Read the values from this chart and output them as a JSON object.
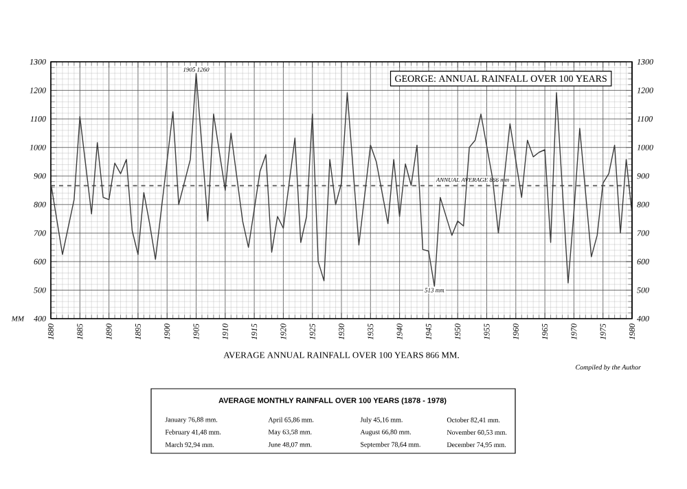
{
  "chart_data": {
    "type": "line",
    "title": "GEORGE: ANNUAL RAINFALL OVER 100 YEARS",
    "xlabel": "AVERAGE ANNUAL RAINFALL OVER 100 YEARS 866 MM.",
    "ylabel": "MM",
    "x": [
      1880,
      1882,
      1884,
      1885,
      1887,
      1888,
      1889,
      1890,
      1891,
      1892,
      1893,
      1894,
      1895,
      1896,
      1897,
      1898,
      1901,
      1902,
      1904,
      1905,
      1907,
      1908,
      1910,
      1911,
      1913,
      1914,
      1916,
      1917,
      1918,
      1919,
      1920,
      1922,
      1923,
      1924,
      1925,
      1926,
      1927,
      1928,
      1929,
      1930,
      1931,
      1933,
      1935,
      1936,
      1938,
      1939,
      1940,
      1941,
      1942,
      1943,
      1944,
      1945,
      1946,
      1947,
      1949,
      1950,
      1951,
      1952,
      1953,
      1954,
      1956,
      1957,
      1959,
      1961,
      1962,
      1963,
      1964,
      1965,
      1966,
      1967,
      1969,
      1970,
      1971,
      1973,
      1974,
      1975,
      1976,
      1977,
      1978,
      1979,
      1980
    ],
    "series": [
      {
        "color": "#3a3a3a",
        "values": [
          875,
          625,
          817,
          1108,
          767,
          1017,
          825,
          817,
          945,
          908,
          958,
          708,
          625,
          842,
          733,
          608,
          1125,
          800,
          958,
          1260,
          742,
          1117,
          850,
          1050,
          742,
          650,
          917,
          975,
          633,
          758,
          717,
          1033,
          667,
          758,
          1117,
          600,
          533,
          958,
          800,
          875,
          1192,
          658,
          1008,
          950,
          733,
          958,
          758,
          942,
          867,
          1008,
          642,
          637,
          513,
          825,
          692,
          742,
          725,
          1000,
          1025,
          1117,
          892,
          700,
          1083,
          825,
          1025,
          967,
          983,
          992,
          667,
          1192,
          525,
          775,
          1067,
          617,
          692,
          875,
          908,
          1008,
          700,
          958,
          767
        ]
      }
    ],
    "xlim": [
      1880,
      1980
    ],
    "xticks": [
      1880,
      1885,
      1890,
      1895,
      1900,
      1905,
      1910,
      1915,
      1920,
      1925,
      1930,
      1935,
      1940,
      1945,
      1950,
      1955,
      1960,
      1965,
      1970,
      1975,
      1980
    ],
    "ylim": [
      400,
      1300
    ],
    "yticks": [
      400,
      500,
      600,
      700,
      800,
      900,
      1000,
      1100,
      1200,
      1300
    ],
    "y2lim": [
      400,
      1300
    ],
    "y2ticks": [
      400,
      500,
      600,
      700,
      800,
      900,
      1000,
      1100,
      1200,
      1300
    ],
    "grid": true,
    "marker": "none",
    "line_style": "solid",
    "ref_lines": [
      {
        "axis": "y",
        "value": 866,
        "label": "ANNUAL AVERAGE 866 mm",
        "line_style": "dashed",
        "color": "#555555"
      }
    ],
    "annotations": [
      {
        "text": "1905 1260",
        "x": 1905,
        "y": 1260
      },
      {
        "text": "513 mm",
        "x": 1946,
        "y": 513
      },
      "Compiled by the Author",
      "AVERAGE MONTHLY RAINFALL OVER 100 YEARS (1878 - 1978)",
      "January 76,88 mm.",
      "February 41,48 mm.",
      "March 92,94 mm.",
      "April 65,86 mm.",
      "May 63,58 mm.",
      "June 48,07 mm.",
      "July 45,16 mm.",
      "August 66,80 mm.",
      "September 78,64 mm.",
      "October 82,41 mm.",
      "November 60,53 mm.",
      "December 74,95 mm."
    ]
  }
}
